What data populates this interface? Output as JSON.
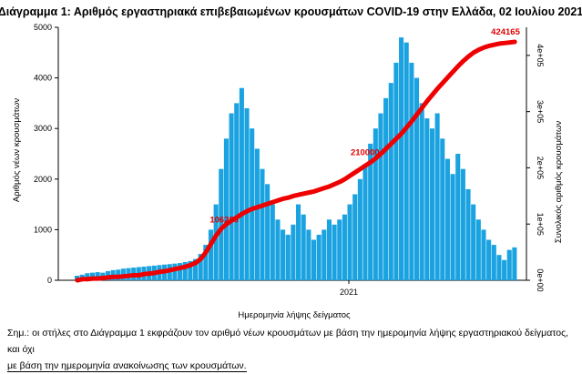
{
  "chart_data": {
    "type": "bar",
    "title": "Διάγραμμα 1: Αριθμός εργαστηριακά επιβεβαιωμένων κρουσμάτων COVID-19 στην Ελλάδα, 02 Ιουλίου 2021",
    "xlabel": "Ημερομηνία λήψης δείγματος",
    "ylabel": "Αριθμός νέων κρουσμάτων",
    "ylabel_right": "Συνολικός αριθμός κρουσμάτων",
    "x_tick_labels": [
      "2021"
    ],
    "ylim": [
      0,
      5000
    ],
    "y_ticks": [
      "0",
      "1000",
      "2000",
      "3000",
      "4000",
      "5000"
    ],
    "ylim_right": [
      0,
      450000
    ],
    "y_ticks_right": [
      "0e+00",
      "1e+05",
      "2e+05",
      "3e+05",
      "4e+05"
    ],
    "bar_color": "#1aa3e0",
    "line_color": "#ee0000",
    "series": [
      {
        "name": "daily",
        "kind": "bar",
        "values": [
          90,
          110,
          140,
          150,
          160,
          150,
          180,
          200,
          210,
          230,
          240,
          250,
          260,
          270,
          280,
          290,
          300,
          310,
          320,
          330,
          340,
          360,
          380,
          420,
          520,
          700,
          1000,
          1500,
          2200,
          2800,
          3300,
          3500,
          3800,
          3400,
          3000,
          2600,
          2200,
          1900,
          1500,
          1200,
          1000,
          900,
          1100,
          1500,
          1300,
          1000,
          800,
          900,
          1000,
          1200,
          1100,
          1200,
          1300,
          1500,
          1700,
          2000,
          2300,
          2700,
          3000,
          3300,
          3600,
          3900,
          4300,
          4800,
          4700,
          4300,
          4000,
          3500,
          3200,
          3000,
          3300,
          2800,
          2400,
          2100,
          2500,
          2200,
          1800,
          1500,
          1200,
          1000,
          800,
          700,
          500,
          400,
          600,
          650
        ]
      },
      {
        "name": "cumulative",
        "kind": "line",
        "values": [
          0,
          2000,
          2000,
          3000,
          3000,
          4000,
          5000,
          6000,
          6000,
          7000,
          8000,
          9000,
          9000,
          11000,
          12000,
          13000,
          15000,
          16000,
          18000,
          20000,
          22000,
          24000,
          27000,
          31000,
          38000,
          50000,
          65000,
          80000,
          92000,
          100000,
          106200,
          112000,
          118000,
          123000,
          127000,
          130000,
          133000,
          136000,
          139000,
          142000,
          145000,
          147000,
          150000,
          152000,
          154000,
          156000,
          158000,
          161000,
          164000,
          167000,
          171000,
          175000,
          180000,
          186000,
          192000,
          198000,
          204000,
          210000,
          217000,
          225000,
          234000,
          243000,
          252000,
          261000,
          272000,
          283000,
          295000,
          307000,
          319000,
          330000,
          341000,
          351000,
          361000,
          371000,
          381000,
          390000,
          398000,
          405000,
          410000,
          414000,
          417000,
          419000,
          421000,
          422000,
          423000,
          424165
        ]
      }
    ],
    "point_labels": [
      "106200",
      "210000",
      "424165"
    ]
  },
  "footnote": {
    "line1": "Σημ.: οι στήλες στο Διάγραμμα 1 εκφράζουν τον αριθμό νέων κρουσμάτων με βάση την ημερομηνία λήψης εργαστηριακού δείγματος, και όχι",
    "line2": "με βάση την ημερομηνία ανακοίνωσης των κρουσμάτων."
  }
}
